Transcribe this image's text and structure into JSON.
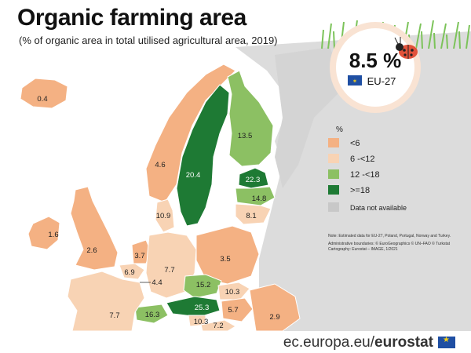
{
  "header": {
    "title": "Organic farming area",
    "subtitle": "(% of organic area in total utilised agricultural area, 2019)"
  },
  "highlight": {
    "value": "8.5 %",
    "label": "EU-27",
    "icon": "ladybug-icon",
    "flag_icon": "eu-flag-icon"
  },
  "legend": {
    "unit": "%",
    "items": [
      {
        "label": "<6",
        "color": "#f4b183"
      },
      {
        "label": "6 -<12",
        "color": "#f8d3b4"
      },
      {
        "label": "12 -<18",
        "color": "#8cc063"
      },
      {
        "label": ">=18",
        "color": "#1e7a34"
      },
      {
        "label": "Data not available",
        "color": "#c8c8c8"
      }
    ]
  },
  "notes": {
    "line1": "Note: Estimated data for EU-27, Poland, Portugal, Norway and Turkey.",
    "line2": "Administrative boundaries: © EuroGeographics © UN–FAO © Turkstat",
    "line3": "Cartography: Eurostat – IMAGE, 1/2021"
  },
  "regions": [
    {
      "name": "Iceland",
      "value": "0.4"
    },
    {
      "name": "Norway",
      "value": "4.6"
    },
    {
      "name": "Sweden",
      "value": "20.4"
    },
    {
      "name": "Finland",
      "value": "13.5"
    },
    {
      "name": "Estonia",
      "value": "22.3"
    },
    {
      "name": "Latvia",
      "value": "14.8"
    },
    {
      "name": "Lithuania",
      "value": "8.1"
    },
    {
      "name": "Denmark",
      "value": "10.9"
    },
    {
      "name": "Ireland",
      "value": "1.6"
    },
    {
      "name": "United Kingdom",
      "value": "2.6"
    },
    {
      "name": "Netherlands",
      "value": "3.7"
    },
    {
      "name": "Belgium",
      "value": "6.9"
    },
    {
      "name": "Luxembourg",
      "value": "4.4"
    },
    {
      "name": "Germany",
      "value": "7.7"
    },
    {
      "name": "Poland",
      "value": "3.5"
    },
    {
      "name": "Czechia",
      "value": "15.2"
    },
    {
      "name": "Slovakia",
      "value": "10.3"
    },
    {
      "name": "Austria",
      "value": "25.3"
    },
    {
      "name": "Hungary",
      "value": "5.7"
    },
    {
      "name": "Romania",
      "value": "2.9"
    },
    {
      "name": "Switzerland",
      "value": "16.3"
    },
    {
      "name": "Slovenia",
      "value": "10.3"
    },
    {
      "name": "Croatia",
      "value": "7.2"
    },
    {
      "name": "France",
      "value": "7.7"
    }
  ],
  "footer": {
    "domain": "ec.europa.eu/",
    "brand": "eurostat"
  }
}
